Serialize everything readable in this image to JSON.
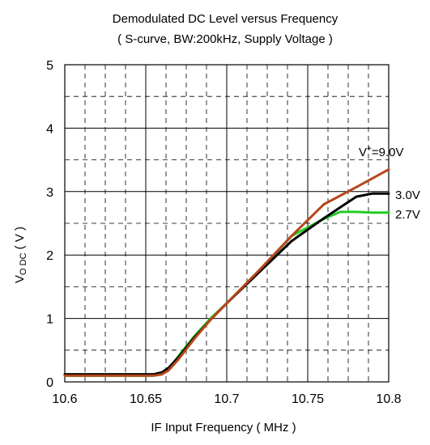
{
  "chart_data": {
    "type": "line",
    "title": "Demodulated DC Level  versus Frequency",
    "subtitle": "( S-curve, BW:200kHz, Supply Voltage )",
    "xlabel": "IF Input Frequency ( MHz )",
    "ylabel": {
      "main": "V",
      "sub": "O DC",
      "rest": " ( V )"
    },
    "xlim": [
      10.6,
      10.8
    ],
    "ylim": [
      0,
      5
    ],
    "xticks": [
      "10.6",
      "10.65",
      "10.7",
      "10.75",
      "10.8"
    ],
    "yticks": [
      "0",
      "1",
      "2",
      "3",
      "4",
      "5"
    ],
    "grid": true,
    "series": [
      {
        "name": "2.7V",
        "color": "#22cc22",
        "x": [
          10.6,
          10.655,
          10.66,
          10.664,
          10.67,
          10.68,
          10.69,
          10.7,
          10.72,
          10.74,
          10.76,
          10.77,
          10.78,
          10.79,
          10.8
        ],
        "y": [
          0.1,
          0.1,
          0.12,
          0.2,
          0.4,
          0.72,
          1.0,
          1.24,
          1.75,
          2.3,
          2.57,
          2.68,
          2.68,
          2.67,
          2.67
        ]
      },
      {
        "name": "3.0V",
        "color": "#000000",
        "x": [
          10.6,
          10.655,
          10.66,
          10.664,
          10.67,
          10.68,
          10.69,
          10.7,
          10.72,
          10.74,
          10.76,
          10.77,
          10.78,
          10.79,
          10.8
        ],
        "y": [
          0.12,
          0.12,
          0.15,
          0.22,
          0.38,
          0.7,
          0.98,
          1.24,
          1.73,
          2.22,
          2.58,
          2.75,
          2.92,
          2.97,
          2.97
        ]
      },
      {
        "name": "V+=9.0V",
        "label_main": "V",
        "label_sup": "+",
        "label_rest": "=9.0V",
        "color": "#b5471b",
        "x": [
          10.6,
          10.655,
          10.66,
          10.664,
          10.67,
          10.68,
          10.69,
          10.7,
          10.72,
          10.74,
          10.76,
          10.78,
          10.8
        ],
        "y": [
          0.1,
          0.1,
          0.12,
          0.18,
          0.35,
          0.68,
          0.98,
          1.24,
          1.76,
          2.3,
          2.8,
          3.07,
          3.35
        ]
      }
    ]
  }
}
